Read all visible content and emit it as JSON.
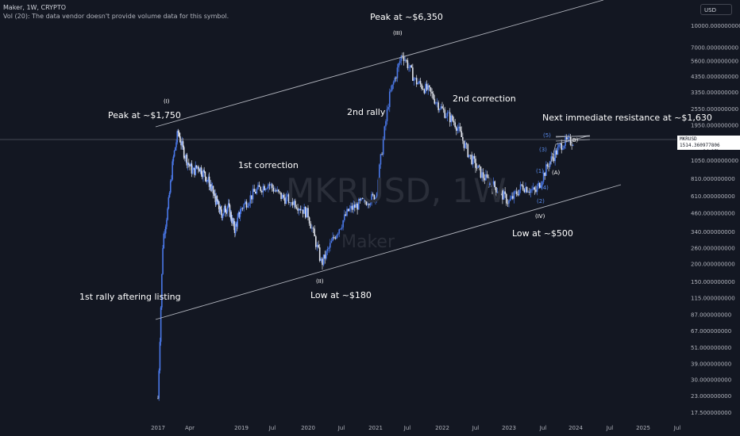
{
  "header": {
    "title": "Maker, 1W, CRYPTO",
    "volume_note": "Vol (20): The data vendor doesn't provide volume data for this symbol."
  },
  "watermark": {
    "symbol": "MKRUSD, 1W",
    "name": "Maker"
  },
  "currency_button": "USD",
  "price_tag": {
    "symbol": "MKRUSD",
    "price": "1514.360977806",
    "countdown": "6d 15h"
  },
  "colors": {
    "background": "#131722",
    "candle_up": "#4a78e8",
    "candle_down": "#e0e3eb",
    "text": "#d1d4dc",
    "line": "#b2b5be"
  },
  "chart_data": {
    "type": "candlestick",
    "title": "Maker, 1W, CRYPTO",
    "y_scale": "log",
    "y_ticks": [
      "10000.000000000",
      "7000.000000000",
      "5600.000000000",
      "4350.000000000",
      "3350.000000000",
      "2550.000000000",
      "1950.000000000",
      "1050.000000000",
      "810.000000000",
      "610.000000000",
      "460.000000000",
      "340.000000000",
      "260.000000000",
      "200.000000000",
      "150.000000000",
      "115.000000000",
      "87.000000000",
      "67.000000000",
      "51.000000000",
      "39.000000000",
      "30.000000000",
      "23.000000000",
      "17.500000000"
    ],
    "x_ticks": [
      "2017",
      "Apr",
      "2019",
      "Jul",
      "2020",
      "Jul",
      "2021",
      "Jul",
      "2022",
      "Jul",
      "2023",
      "Jul",
      "2024",
      "Jul",
      "2025",
      "Jul"
    ],
    "grid": false,
    "series": [
      {
        "x": [
          2017.0,
          2017.1,
          2017.2,
          2017.3,
          2017.4,
          2017.5,
          2017.6,
          2017.7,
          2017.8,
          2018.0,
          2018.2,
          2018.4,
          2018.6,
          2018.8,
          2019.0,
          2019.2,
          2019.4,
          2019.6,
          2019.8,
          2020.0,
          2020.2,
          2020.4,
          2020.6,
          2020.8,
          2021.0,
          2021.2,
          2021.4,
          2021.6,
          2021.8,
          2022.0,
          2022.2,
          2022.4,
          2022.6,
          2022.8,
          2023.0,
          2023.2,
          2023.4,
          2023.6,
          2023.8,
          2024.0
        ],
        "y": [
          22,
          300,
          500,
          1100,
          1750,
          1300,
          1050,
          900,
          1000,
          800,
          600,
          450,
          520,
          350,
          500,
          650,
          750,
          600,
          550,
          450,
          200,
          320,
          480,
          550,
          600,
          3000,
          6350,
          4000,
          3400,
          2500,
          2000,
          1200,
          850,
          700,
          550,
          720,
          650,
          1050,
          1450,
          1514
        ]
      }
    ],
    "annotations": [
      "Peak at ~$1,750",
      "1st correction",
      "1st rally aftering listing",
      "Low at ~$180",
      "Peak at ~$6,350",
      "2nd rally",
      "2nd correction",
      "Low at ~$500",
      "Next immediate resistance at ~$1,630"
    ],
    "wave_labels": [
      "(I)",
      "(II)",
      "(III)",
      "(IV)",
      "(1)",
      "(2)",
      "(3)",
      "(4)",
      "(5)",
      "(A)",
      "(B)"
    ]
  }
}
